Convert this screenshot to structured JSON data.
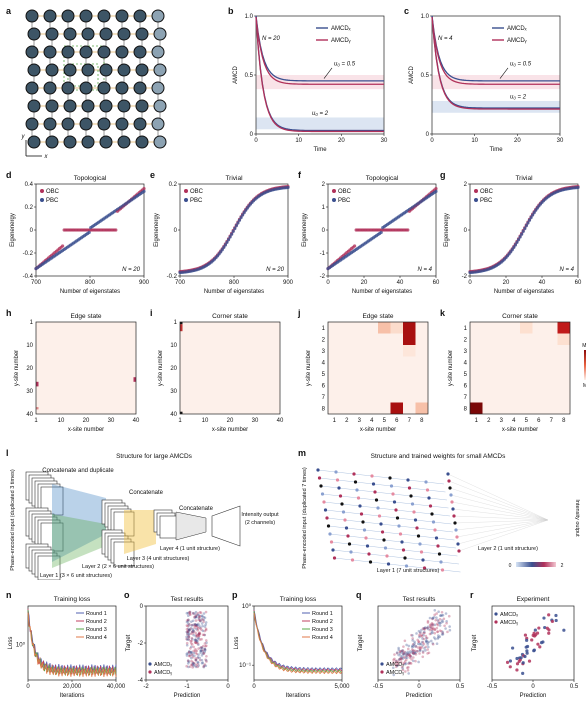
{
  "colors": {
    "blue": "#3a4f8f",
    "red": "#b0315a",
    "pink": "#f3c8d2",
    "lightblue": "#b9cbe6",
    "heat_max": "#8b0a0a",
    "heat_min": "#fdf0ea",
    "green": "#5aa84a",
    "orange": "#e07a4a"
  },
  "a": {
    "label": "a",
    "axis_y": "y",
    "axis_x": "x"
  },
  "b": {
    "label": "b",
    "n": "N = 20",
    "legend": [
      "AMCDₓ",
      "AMCDᵧ"
    ],
    "ylabel": "AMCD",
    "xlabel": "Time",
    "ann1": "u₀ = 0.5",
    "ann2": "u₀ = 2",
    "xticks": [
      "0",
      "10",
      "20",
      "30"
    ],
    "yticks": [
      "0",
      "0.5",
      "1.0"
    ]
  },
  "c": {
    "label": "c",
    "n": "N = 4",
    "legend": [
      "AMCDₓ",
      "AMCDᵧ"
    ],
    "ylabel": "AMCD",
    "xlabel": "Time",
    "ann1": "u₀ = 0.5",
    "ann2": "u₀ = 2",
    "xticks": [
      "0",
      "10",
      "20",
      "30"
    ],
    "yticks": [
      "0",
      "0.5",
      "1.0"
    ]
  },
  "d": {
    "label": "d",
    "title": "Topological",
    "legend": [
      "OBC",
      "PBC"
    ],
    "ylabel": "Eigenenergy",
    "xlabel": "Number of eigenstates",
    "n": "N = 20",
    "xticks": [
      "700",
      "800",
      "900"
    ],
    "yticks": [
      "-0.4",
      "-0.2",
      "0",
      "0.2",
      "0.4"
    ]
  },
  "e": {
    "label": "e",
    "title": "Trivial",
    "legend": [
      "OBC",
      "PBC"
    ],
    "ylabel": "Eigenenergy",
    "xlabel": "Number of eigenstates",
    "n": "N = 20",
    "xticks": [
      "700",
      "800",
      "900"
    ],
    "yticks": [
      "-0.2",
      "0",
      "0.2"
    ]
  },
  "f": {
    "label": "f",
    "title": "Topological",
    "legend": [
      "OBC",
      "PBC"
    ],
    "ylabel": "Eigenenergy",
    "xlabel": "Number of eigenstates",
    "n": "N = 4",
    "xticks": [
      "0",
      "20",
      "40",
      "60"
    ],
    "yticks": [
      "-2",
      "-1",
      "0",
      "1",
      "2"
    ]
  },
  "g": {
    "label": "g",
    "title": "Trivial",
    "legend": [
      "OBC",
      "PBC"
    ],
    "ylabel": "Eigenenergy",
    "xlabel": "Number of eigenstates",
    "n": "N = 4",
    "xticks": [
      "0",
      "20",
      "40",
      "60"
    ],
    "yticks": [
      "-2",
      "0",
      "2"
    ]
  },
  "h": {
    "label": "h",
    "title": "Edge state",
    "ylabel": "y-site number",
    "xlabel": "x-site number",
    "xticks": [
      "1",
      "10",
      "20",
      "30",
      "40"
    ],
    "yticks": [
      "1",
      "10",
      "20",
      "30",
      "40"
    ]
  },
  "i": {
    "label": "i",
    "title": "Corner state",
    "ylabel": "y-site number",
    "xlabel": "x-site number",
    "xticks": [
      "1",
      "10",
      "20",
      "30",
      "40"
    ],
    "yticks": [
      "1",
      "10",
      "20",
      "30",
      "40"
    ]
  },
  "j": {
    "label": "j",
    "title": "Edge state",
    "ylabel": "y-site number",
    "xlabel": "x-site number",
    "xticks": [
      "1",
      "2",
      "3",
      "4",
      "5",
      "6",
      "7",
      "8"
    ],
    "yticks": [
      "1",
      "2",
      "3",
      "4",
      "5",
      "6",
      "7",
      "8"
    ]
  },
  "k": {
    "label": "k",
    "title": "Corner state",
    "ylabel": "y-site number",
    "xlabel": "x-site number",
    "xticks": [
      "1",
      "2",
      "3",
      "4",
      "5",
      "6",
      "7",
      "8"
    ],
    "yticks": [
      "1",
      "2",
      "3",
      "4",
      "5",
      "6",
      "7",
      "8"
    ],
    "cbar_max": "Max",
    "cbar_min": "Min"
  },
  "l": {
    "label": "l",
    "title": "Structure for large AMCDs",
    "concat_dup": "Concatenate and duplicate",
    "concat1": "Concatenate",
    "concat2": "Concatenate",
    "input": "Phase-encoded input (duplicated 3 times)",
    "output": "Intensity output (2 channels)",
    "layer1": "Layer 1 (3 × 6 unit structures)",
    "layer2": "Layer 2 (2 × 6 unit structures)",
    "layer3": "Layer 3 (4 unit structures)",
    "layer4": "Layer 4 (1 unit structure)"
  },
  "m": {
    "label": "m",
    "title": "Structure and trained weights for small AMCDs",
    "input": "Phase-encoded input (duplicated 7 times)",
    "output": "Intensity output",
    "layer1": "Layer 1 (7 unit structures)",
    "layer2": "Layer 2 (1 unit structure)",
    "cbar_min": "0",
    "cbar_max": "2"
  },
  "n": {
    "label": "n",
    "title": "Training loss",
    "ylabel": "Loss",
    "xlabel": "Iterations",
    "legend": [
      "Round 1",
      "Round 2",
      "Round 3",
      "Round 4"
    ],
    "xticks": [
      "0",
      "20,000",
      "40,000"
    ],
    "ytick": "10⁰"
  },
  "o": {
    "label": "o",
    "title": "Test results",
    "ylabel": "Target",
    "xlabel": "Prediction",
    "legend": [
      "AMCDₓ",
      "AMCDᵧ"
    ],
    "xticks": [
      "-2",
      "-1",
      "0"
    ],
    "yticks": [
      "0",
      "-2",
      "-4"
    ]
  },
  "p": {
    "label": "p",
    "title": "Training loss",
    "ylabel": "Loss",
    "xlabel": "Iterations",
    "legend": [
      "Round 1",
      "Round 2",
      "Round 3",
      "Round 4"
    ],
    "xticks": [
      "0",
      "5,000"
    ],
    "yticks": [
      "10⁰",
      "10⁻¹"
    ]
  },
  "q": {
    "label": "q",
    "title": "Test results",
    "ylabel": "Target",
    "xlabel": "Prediction",
    "legend": [
      "AMCDₓ",
      "AMCDᵧ"
    ],
    "xticks": [
      "-0.5",
      "0",
      "0.5"
    ]
  },
  "r": {
    "label": "r",
    "title": "Experiment",
    "ylabel": "Target",
    "xlabel": "Prediction",
    "legend": [
      "AMCDₓ",
      "AMCDᵧ"
    ],
    "xticks": [
      "-0.5",
      "0",
      "0.5"
    ]
  }
}
